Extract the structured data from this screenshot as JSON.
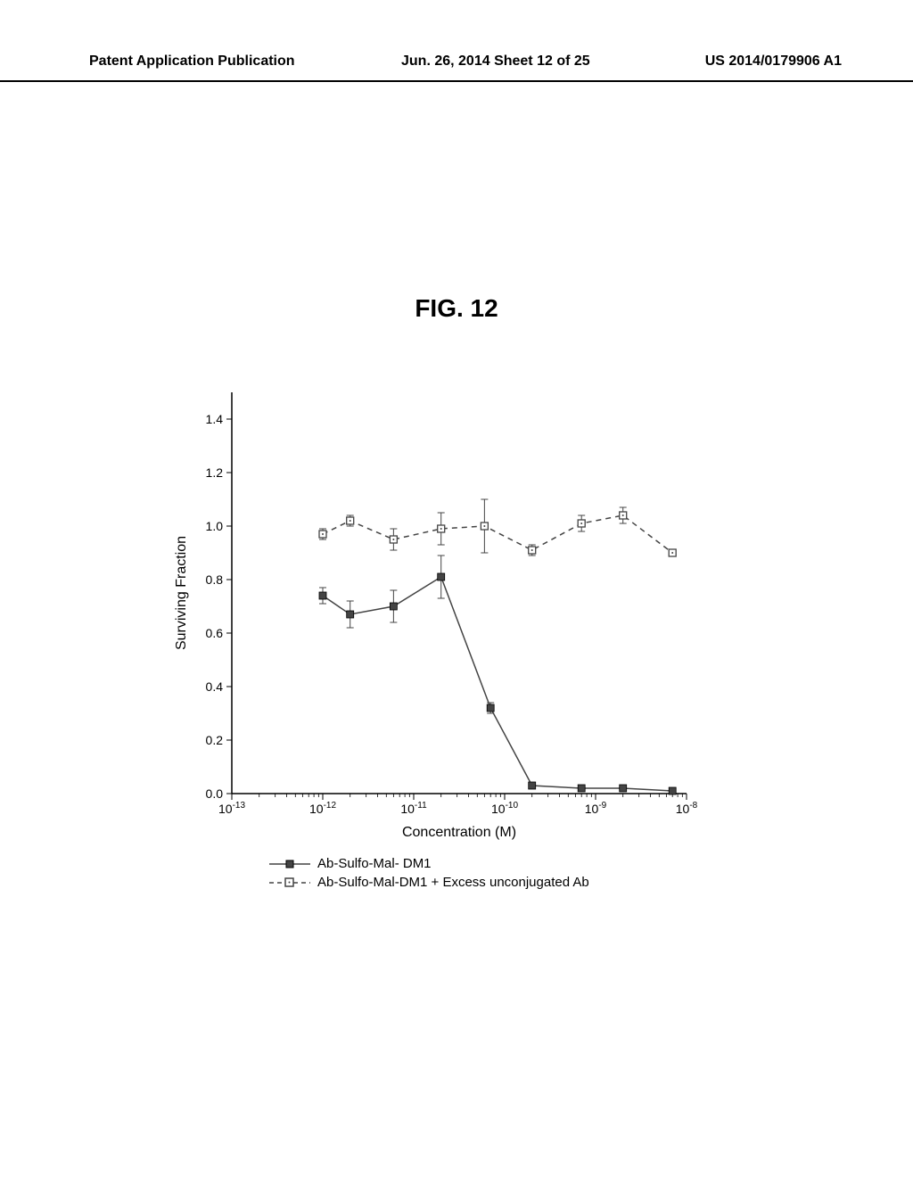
{
  "header": {
    "left": "Patent Application Publication",
    "center": "Jun. 26, 2014  Sheet 12 of 25",
    "right": "US 2014/0179906 A1"
  },
  "figure_title": "FIG. 12",
  "chart": {
    "type": "line-scatter",
    "background_color": "#ffffff",
    "axis_color": "#000000",
    "tick_fontsize": 14,
    "label_fontsize": 16,
    "xlabel": "Concentration (M)",
    "ylabel": "Surviving Fraction",
    "x_log": true,
    "xlim": [
      1e-13,
      1e-08
    ],
    "ylim": [
      0.0,
      1.5
    ],
    "yticks": [
      0.0,
      0.2,
      0.4,
      0.6,
      0.8,
      1.0,
      1.2,
      1.4
    ],
    "xticks_exp": [
      -13,
      -12,
      -11,
      -10,
      -9,
      -8
    ],
    "series": [
      {
        "name": "Ab-Sulfo-Mal- DM1",
        "marker": "filled-square",
        "marker_size": 8,
        "line_style": "solid",
        "line_width": 1.5,
        "color": "#444444",
        "x": [
          1e-12,
          2e-12,
          6e-12,
          2e-11,
          7e-11,
          2e-10,
          7e-10,
          2e-09,
          7e-09
        ],
        "y": [
          0.74,
          0.67,
          0.7,
          0.81,
          0.32,
          0.03,
          0.02,
          0.02,
          0.01
        ],
        "err": [
          0.03,
          0.05,
          0.06,
          0.08,
          0.02,
          0.01,
          0.01,
          0.01,
          0.01
        ]
      },
      {
        "name": "Ab-Sulfo-Mal-DM1 + Excess unconjugated Ab",
        "marker": "open-square",
        "marker_size": 8,
        "line_style": "dashed",
        "line_width": 1.5,
        "color": "#444444",
        "x": [
          1e-12,
          2e-12,
          6e-12,
          2e-11,
          6e-11,
          2e-10,
          7e-10,
          2e-09,
          7e-09
        ],
        "y": [
          0.97,
          1.02,
          0.95,
          0.99,
          1.0,
          0.91,
          1.01,
          1.04,
          0.9
        ],
        "err": [
          0.02,
          0.02,
          0.04,
          0.06,
          0.1,
          0.02,
          0.03,
          0.03,
          0.01
        ]
      }
    ]
  },
  "legend": {
    "items": [
      {
        "label": "Ab-Sulfo-Mal- DM1",
        "style": "solid",
        "marker": "filled-square"
      },
      {
        "label": "Ab-Sulfo-Mal-DM1 + Excess unconjugated Ab",
        "style": "dashed",
        "marker": "open-square"
      }
    ]
  }
}
